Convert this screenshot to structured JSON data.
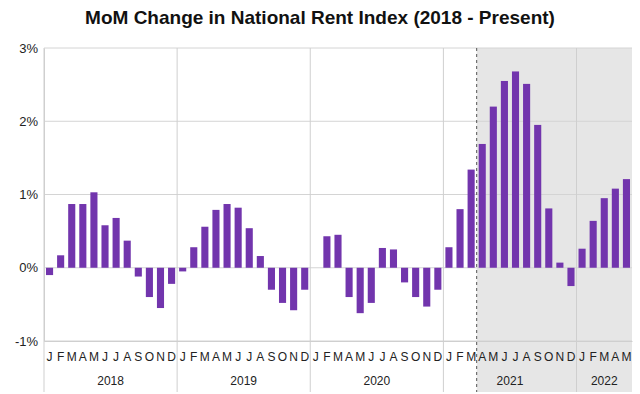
{
  "chart_data": {
    "type": "bar",
    "title": "MoM Change in National Rent Index (2018 - Present)",
    "categories": [
      "J",
      "F",
      "M",
      "A",
      "M",
      "J",
      "J",
      "A",
      "S",
      "O",
      "N",
      "D",
      "J",
      "F",
      "M",
      "A",
      "M",
      "J",
      "J",
      "A",
      "S",
      "O",
      "N",
      "D",
      "J",
      "F",
      "M",
      "A",
      "M",
      "J",
      "J",
      "A",
      "S",
      "O",
      "N",
      "D",
      "J",
      "F",
      "M",
      "A",
      "M",
      "J",
      "J",
      "A",
      "S",
      "O",
      "N",
      "D",
      "J",
      "F",
      "M",
      "A",
      "M"
    ],
    "values": [
      -0.1,
      0.17,
      0.87,
      0.87,
      1.03,
      0.58,
      0.68,
      0.37,
      -0.12,
      -0.4,
      -0.55,
      -0.22,
      -0.05,
      0.28,
      0.56,
      0.79,
      0.87,
      0.82,
      0.54,
      0.16,
      -0.3,
      -0.48,
      -0.58,
      -0.3,
      0,
      0.43,
      0.45,
      -0.4,
      -0.62,
      -0.48,
      0.27,
      0.25,
      -0.2,
      -0.4,
      -0.53,
      -0.3,
      0.28,
      0.8,
      1.34,
      1.69,
      2.2,
      2.55,
      2.68,
      2.51,
      1.95,
      0.81,
      0.07,
      -0.25,
      0.26,
      0.64,
      0.95,
      1.08,
      1.21
    ],
    "color": "#7235ad",
    "ylim": [
      -1,
      3
    ],
    "yticks": [
      {
        "value": -1,
        "label": "-1%"
      },
      {
        "value": 0,
        "label": "0%"
      },
      {
        "value": 1,
        "label": "1%"
      },
      {
        "value": 2,
        "label": "2%"
      },
      {
        "value": 3,
        "label": "3%"
      }
    ],
    "grid": true,
    "year_groups": [
      {
        "label": "2018",
        "months": 12
      },
      {
        "label": "2019",
        "months": 12
      },
      {
        "label": "2020",
        "months": 12
      },
      {
        "label": "2021",
        "months": 12
      },
      {
        "label": "2022",
        "months": 5
      }
    ],
    "shaded_from": 39
  }
}
